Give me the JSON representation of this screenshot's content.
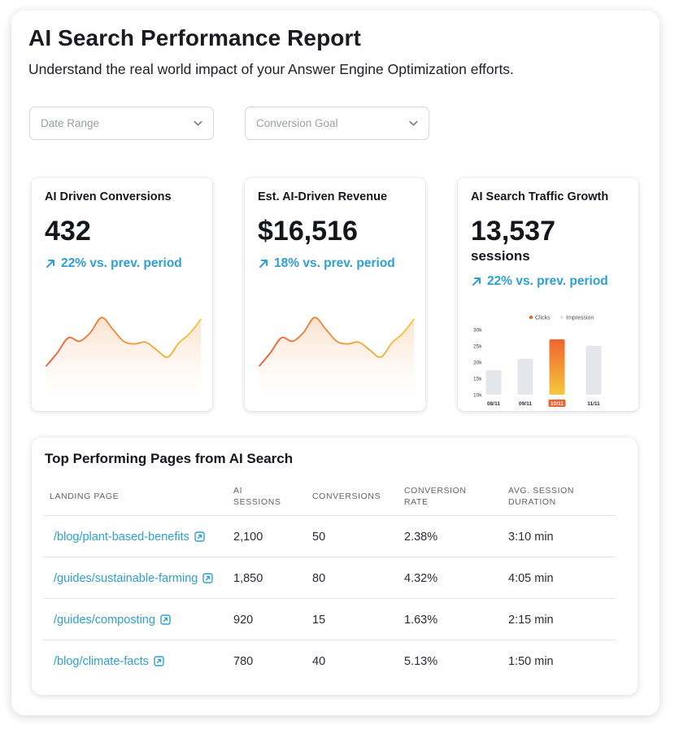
{
  "header": {
    "title": "AI Search Performance Report",
    "subtitle": "Understand the real world impact of your Answer Engine Optimization efforts."
  },
  "filters": {
    "date_range": {
      "placeholder": "Date Range",
      "icon": "chevron-down-icon"
    },
    "conversion_goal": {
      "placeholder": "Conversion Goal",
      "icon": "chevron-down-icon"
    }
  },
  "cards": [
    {
      "title": "AI Driven Conversions",
      "value": "432",
      "change": "22% vs. prev. period",
      "change_icon": "arrow-up-right-icon",
      "trend": [
        30,
        45,
        62,
        58,
        68,
        85,
        72,
        58,
        55,
        57,
        48,
        40,
        56,
        67,
        83
      ]
    },
    {
      "title": "Est. AI-Driven Revenue",
      "value": "$16,516",
      "change": "18% vs. prev. period",
      "change_icon": "arrow-up-right-icon",
      "trend": [
        30,
        45,
        62,
        58,
        68,
        85,
        72,
        58,
        55,
        57,
        48,
        40,
        56,
        67,
        83
      ]
    },
    {
      "title": "AI Search Traffic Growth",
      "value": "13,537",
      "unit": "sessions",
      "change": "22% vs. prev. period",
      "change_icon": "arrow-up-right-icon"
    }
  ],
  "chart_data": {
    "type": "bar",
    "categories": [
      "08/11",
      "09/11",
      "10/11",
      "11/11"
    ],
    "highlight_category": "10/11",
    "series": [
      {
        "name": "Clicks",
        "values": [
          null,
          null,
          27,
          null
        ],
        "color": "#f0632e"
      },
      {
        "name": "Impression",
        "values": [
          17.5,
          21,
          null,
          25
        ],
        "color": "#e5e6ec"
      }
    ],
    "y_ticks": [
      "30k",
      "25k",
      "20k",
      "15k",
      "10k"
    ],
    "ylim": [
      10,
      30
    ],
    "legend": "top",
    "grid": false
  },
  "table": {
    "title": "Top Performing Pages from AI Search",
    "columns": [
      {
        "label": "LANDING PAGE"
      },
      {
        "label": "AI\nSESSIONS"
      },
      {
        "label": "CONVERSIONS"
      },
      {
        "label": "CONVERSION\nRATE"
      },
      {
        "label": "AVG. SESSION\nDURATION"
      }
    ],
    "rows": [
      {
        "page": "/blog/plant-based-benefits",
        "sessions": "2,100",
        "conversions": "50",
        "rate": "2.38%",
        "duration": "3:10 min"
      },
      {
        "page": "/guides/sustainable-farming",
        "sessions": "1,850",
        "conversions": "80",
        "rate": "4.32%",
        "duration": "4:05 min"
      },
      {
        "page": "/guides/composting",
        "sessions": "920",
        "conversions": "15",
        "rate": "1.63%",
        "duration": "2:15 min"
      },
      {
        "page": "/blog/climate-facts",
        "sessions": "780",
        "conversions": "40",
        "rate": "5.13%",
        "duration": "1:50 min"
      }
    ],
    "link_icon": "external-link-icon"
  },
  "colors": {
    "accent_blue": "#2d9fd6",
    "spark_start": "#ee5a30",
    "spark_end": "#f4c63c",
    "highlight_bar": "#f0632e"
  }
}
